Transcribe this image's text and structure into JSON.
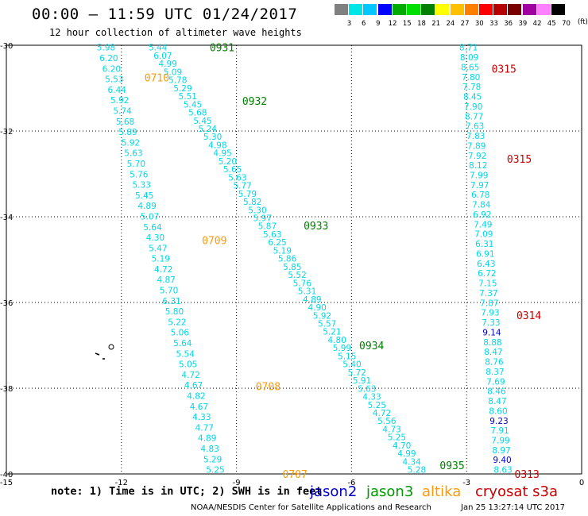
{
  "header": {
    "title": "00:00 – 11:59 UTC 01/24/2017",
    "subtitle": "12 hour collection of altimeter wave heights"
  },
  "colorbar": {
    "ticks": [
      "3",
      "6",
      "9",
      "12",
      "15",
      "18",
      "21",
      "24",
      "27",
      "30",
      "33",
      "36",
      "39",
      "42",
      "45",
      "70"
    ],
    "unit": "(ft)",
    "colors": [
      "#808080",
      "#00e5e5",
      "#00c8ff",
      "#0000ff",
      "#00aa00",
      "#00e000",
      "#008000",
      "#ffff00",
      "#ffc000",
      "#ff8000",
      "#ff0000",
      "#b40000",
      "#780000",
      "#a000a0",
      "#ff80ff",
      "#000000"
    ]
  },
  "footer": {
    "note": "note: 1) Time is in UTC; 2) SWH is in feet",
    "credit": "NOAA/NESDIS Center for Satellite Applications and Research",
    "timestamp": "Jan 25 13:27:14 UTC 2017"
  },
  "legend": [
    {
      "label": "jason2",
      "color": "#0000cc"
    },
    {
      "label": "jason3",
      "color": "#009900"
    },
    {
      "label": "altika",
      "color": "#ff9900"
    },
    {
      "label": "cryosat s3a",
      "color": "#cc0000"
    }
  ],
  "chart_data": {
    "type": "scatter",
    "x_ticks": [
      -15,
      -12,
      -9,
      -6,
      -3,
      0
    ],
    "y_ticks": [
      -30,
      -32,
      -34,
      -36,
      -38,
      -40
    ],
    "x_tick_labels": [
      "-15",
      "-12",
      "-9",
      "-6",
      "-3",
      "0"
    ],
    "y_tick_labels": [
      "-30",
      "-32",
      "-34",
      "-36",
      "-38",
      "-40"
    ],
    "xlim": [
      -15,
      0
    ],
    "ylim": [
      -40,
      -30
    ],
    "grid": true,
    "tracks": [
      {
        "name": "altika-A",
        "color": "#00d7e8",
        "x_start": -12.4,
        "y_start": -30.05,
        "x_end": -9.55,
        "y_end": -39.9,
        "values": [
          "5.98",
          "6.20",
          "6.20",
          "5.53",
          "6.44",
          "5.92",
          "5.74",
          "5.68",
          "5.89",
          "5.92",
          "5.63",
          "5.70",
          "5.76",
          "5.33",
          "5.45",
          "4.89",
          "5.07",
          "5.64",
          "4.30",
          "5.47",
          "5.19",
          "4.72",
          "4.87",
          "5.70",
          "6.31",
          "5.80",
          "5.22",
          "5.06",
          "5.64",
          "5.54",
          "5.05",
          "4.72",
          "4.67",
          "4.82",
          "4.67",
          "4.33",
          "4.77",
          "4.89",
          "4.83",
          "5.29",
          "5.25"
        ]
      },
      {
        "name": "jason3-A",
        "color": "#00d7e8",
        "x_start": -11.05,
        "y_start": -30.05,
        "x_end": -4.3,
        "y_end": -39.9,
        "values": [
          "5.44",
          "6.07",
          "4.99",
          "5.09",
          "5.78",
          "5.29",
          "5.51",
          "5.45",
          "5.68",
          "5.45",
          "5.24",
          "5.30",
          "4.98",
          "4.95",
          "5.20",
          "5.65",
          "5.63",
          "5.77",
          "5.79",
          "5.82",
          "5.30",
          "5.97",
          "5.87",
          "5.63",
          "6.25",
          "5.19",
          "5.86",
          "5.85",
          "5.52",
          "5.76",
          "5.31",
          "4.89",
          "4.90",
          "5.92",
          "5.57",
          "5.21",
          "4.80",
          "5.99",
          "5.15",
          "5.40",
          "5.72",
          "5.91",
          "5.63",
          "4.33",
          "5.25",
          "4.72",
          "5.56",
          "4.73",
          "5.25",
          "4.70",
          "4.99",
          "4.34",
          "5.28"
        ]
      },
      {
        "name": "cryosat-A",
        "color": "#00d7e8",
        "x_start": -2.95,
        "y_start": -30.05,
        "x_end": -2.05,
        "y_end": -39.9,
        "values": [
          "8.71",
          "8.09",
          "8.65",
          "7.80",
          "7.78",
          "8.45",
          "7.90",
          "8.77",
          "7.63",
          "7.83",
          "7.89",
          "7.92",
          "8.12",
          "7.99",
          "7.97",
          "6.78",
          "7.84",
          "6.92",
          "7.49",
          "7.09",
          "6.31",
          "6.91",
          "6.43",
          "6.72",
          "7.15",
          "7.37",
          "7.87",
          "7.93",
          "7.33",
          "9.14",
          "8.88",
          "8.47",
          "8.76",
          "8.37",
          "7.69",
          "8.46",
          "8.47",
          "8.60",
          "9.23",
          "7.91",
          "7.99",
          "8.97",
          "9.40",
          "8.63"
        ]
      }
    ],
    "time_labels": [
      {
        "text": "0931",
        "x": -9.7,
        "y": -30.05,
        "color": "#008000"
      },
      {
        "text": "0710",
        "x": -11.4,
        "y": -30.75,
        "color": "#ff9900"
      },
      {
        "text": "0932",
        "x": -8.85,
        "y": -31.3,
        "color": "#008000"
      },
      {
        "text": "0709",
        "x": -9.9,
        "y": -34.55,
        "color": "#ff9900"
      },
      {
        "text": "0933",
        "x": -7.25,
        "y": -34.2,
        "color": "#008000"
      },
      {
        "text": "0934",
        "x": -5.8,
        "y": -37.0,
        "color": "#008000"
      },
      {
        "text": "0708",
        "x": -8.5,
        "y": -37.95,
        "color": "#ff9900"
      },
      {
        "text": "0935",
        "x": -3.7,
        "y": -39.8,
        "color": "#008000"
      },
      {
        "text": "0707",
        "x": -7.8,
        "y": -40.0,
        "color": "#ff9900"
      },
      {
        "text": "0315",
        "x": -2.35,
        "y": -30.55,
        "color": "#cc0000"
      },
      {
        "text": "0315",
        "x": -1.95,
        "y": -32.65,
        "color": "#cc0000"
      },
      {
        "text": "0314",
        "x": -1.7,
        "y": -36.3,
        "color": "#cc0000"
      },
      {
        "text": "0313",
        "x": -1.75,
        "y": -40.0,
        "color": "#cc0000"
      }
    ]
  }
}
